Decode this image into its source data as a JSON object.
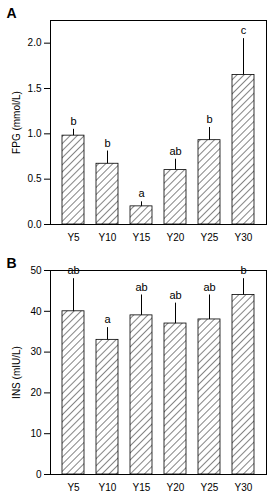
{
  "chart_data": [
    {
      "type": "bar",
      "title": "A",
      "y_label": "FPG (mmol/L)",
      "categories": [
        "Y5",
        "Y10",
        "Y15",
        "Y20",
        "Y25",
        "Y30"
      ],
      "values": [
        0.98,
        0.67,
        0.2,
        0.6,
        0.93,
        1.65
      ],
      "errors": [
        0.07,
        0.14,
        0.05,
        0.12,
        0.14,
        0.4
      ],
      "annotations": [
        "b",
        "b",
        "a",
        "ab",
        "b",
        "c"
      ],
      "color": "#333333",
      "ylim": [
        0,
        2.25
      ],
      "yticks": [
        {
          "value": 0,
          "label": "0.0"
        },
        {
          "value": 0.5,
          "label": "0.5"
        },
        {
          "value": 1,
          "label": "1.0"
        },
        {
          "value": 1.5,
          "label": "1.5"
        },
        {
          "value": 2,
          "label": "2.0"
        }
      ],
      "grid": false
    },
    {
      "type": "bar",
      "title": "B",
      "y_label": "INS (mIU/L)",
      "categories": [
        "Y5",
        "Y10",
        "Y15",
        "Y20",
        "Y25",
        "Y30"
      ],
      "values": [
        40,
        33,
        39,
        37,
        38,
        44
      ],
      "errors": [
        8,
        3,
        5,
        5,
        6,
        4
      ],
      "annotations": [
        "ab",
        "a",
        "ab",
        "ab",
        "ab",
        "b"
      ],
      "color": "#333333",
      "ylim": [
        0,
        50
      ],
      "yticks": [
        0,
        10,
        20,
        30,
        40,
        50
      ],
      "grid": false
    }
  ]
}
